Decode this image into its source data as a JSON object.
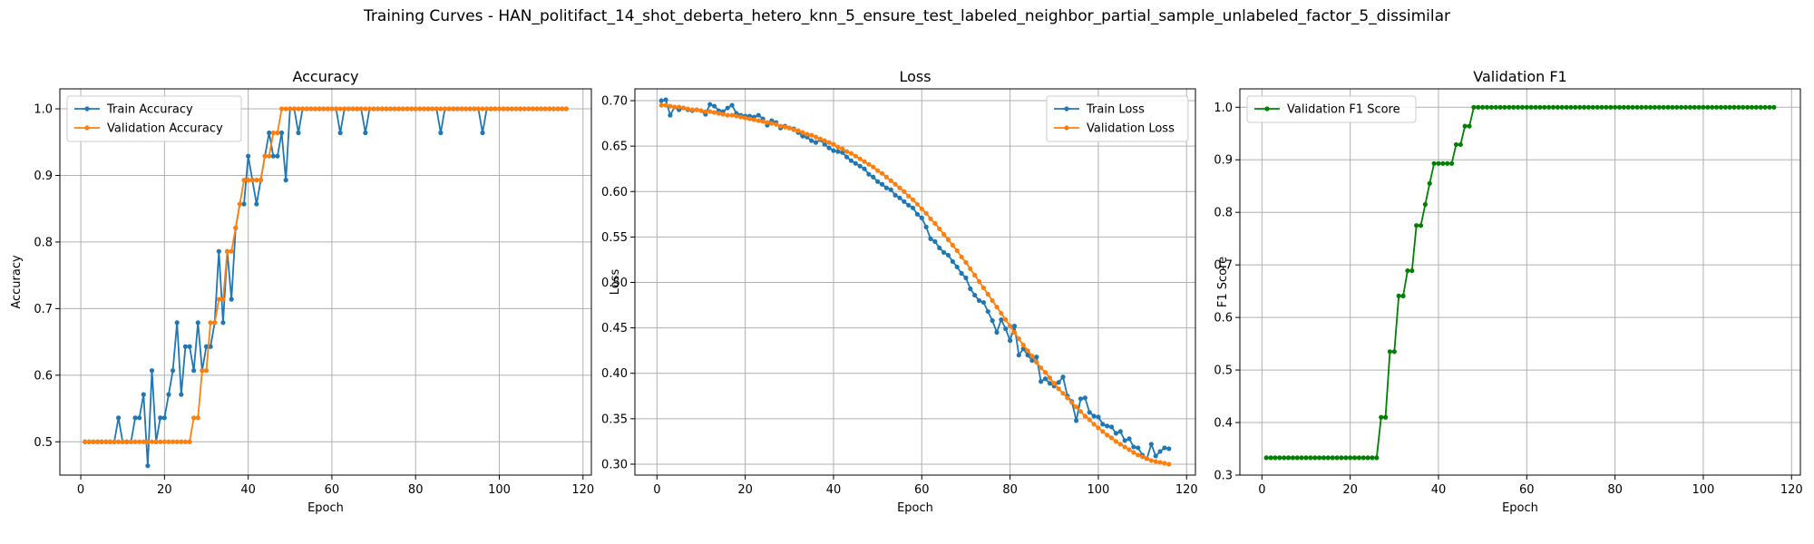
{
  "figure": {
    "suptitle": "Training Curves - HAN_politifact_14_shot_deberta_hetero_knn_5_ensure_test_labeled_neighbor_partial_sample_unlabeled_factor_5_dissimilar"
  },
  "colors": {
    "blue": "#1f77b4",
    "orange": "#ff7f0e",
    "green": "#008000",
    "grid": "#b0b0b0"
  },
  "chart_data": [
    {
      "type": "line",
      "title": "Accuracy",
      "xlabel": "Epoch",
      "ylabel": "Accuracy",
      "xlim": [
        -5,
        122
      ],
      "ylim": [
        0.45,
        1.03
      ],
      "xticks": [
        0,
        20,
        40,
        60,
        80,
        100,
        120
      ],
      "yticks": [
        0.5,
        0.6,
        0.7,
        0.8,
        0.9,
        1.0
      ],
      "ytick_labels": [
        "0.5",
        "0.6",
        "0.7",
        "0.8",
        "0.9",
        "1.0"
      ],
      "grid": true,
      "legend": "upper-left",
      "series": [
        {
          "name": "Train Accuracy",
          "color": "#1f77b4",
          "values": [
            0.5,
            0.5,
            0.5,
            0.5,
            0.5,
            0.5,
            0.5,
            0.5,
            0.536,
            0.5,
            0.5,
            0.5,
            0.536,
            0.536,
            0.571,
            0.464,
            0.607,
            0.5,
            0.536,
            0.536,
            0.571,
            0.607,
            0.679,
            0.571,
            0.643,
            0.643,
            0.607,
            0.679,
            0.607,
            0.643,
            0.643,
            0.679,
            0.786,
            0.679,
            0.786,
            0.714,
            0.821,
            0.857,
            0.857,
            0.929,
            0.893,
            0.857,
            0.893,
            0.929,
            0.964,
            0.929,
            0.929,
            0.964,
            0.893,
            1.0,
            1.0,
            0.964,
            1.0,
            1.0,
            1.0,
            1.0,
            1.0,
            1.0,
            1.0,
            1.0,
            1.0,
            0.964,
            1.0,
            1.0,
            1.0,
            1.0,
            1.0,
            0.964,
            1.0,
            1.0,
            1.0,
            1.0,
            1.0,
            1.0,
            1.0,
            1.0,
            1.0,
            1.0,
            1.0,
            1.0,
            1.0,
            1.0,
            1.0,
            1.0,
            1.0,
            0.964,
            1.0,
            1.0,
            1.0,
            1.0,
            1.0,
            1.0,
            1.0,
            1.0,
            1.0,
            0.964,
            1.0,
            1.0,
            1.0,
            1.0,
            1.0,
            1.0,
            1.0,
            1.0,
            1.0,
            1.0,
            1.0,
            1.0,
            1.0,
            1.0,
            1.0,
            1.0,
            1.0,
            1.0,
            1.0,
            1.0
          ]
        },
        {
          "name": "Validation Accuracy",
          "color": "#ff7f0e",
          "values": [
            0.5,
            0.5,
            0.5,
            0.5,
            0.5,
            0.5,
            0.5,
            0.5,
            0.5,
            0.5,
            0.5,
            0.5,
            0.5,
            0.5,
            0.5,
            0.5,
            0.5,
            0.5,
            0.5,
            0.5,
            0.5,
            0.5,
            0.5,
            0.5,
            0.5,
            0.5,
            0.536,
            0.536,
            0.607,
            0.607,
            0.679,
            0.679,
            0.714,
            0.714,
            0.786,
            0.786,
            0.821,
            0.857,
            0.893,
            0.893,
            0.893,
            0.893,
            0.893,
            0.929,
            0.929,
            0.964,
            0.964,
            1.0,
            1.0,
            1.0,
            1.0,
            1.0,
            1.0,
            1.0,
            1.0,
            1.0,
            1.0,
            1.0,
            1.0,
            1.0,
            1.0,
            1.0,
            1.0,
            1.0,
            1.0,
            1.0,
            1.0,
            1.0,
            1.0,
            1.0,
            1.0,
            1.0,
            1.0,
            1.0,
            1.0,
            1.0,
            1.0,
            1.0,
            1.0,
            1.0,
            1.0,
            1.0,
            1.0,
            1.0,
            1.0,
            1.0,
            1.0,
            1.0,
            1.0,
            1.0,
            1.0,
            1.0,
            1.0,
            1.0,
            1.0,
            1.0,
            1.0,
            1.0,
            1.0,
            1.0,
            1.0,
            1.0,
            1.0,
            1.0,
            1.0,
            1.0,
            1.0,
            1.0,
            1.0,
            1.0,
            1.0,
            1.0,
            1.0,
            1.0,
            1.0,
            1.0
          ]
        }
      ]
    },
    {
      "type": "line",
      "title": "Loss",
      "xlabel": "Epoch",
      "ylabel": "Loss",
      "xlim": [
        -5,
        122
      ],
      "ylim": [
        0.288,
        0.713
      ],
      "xticks": [
        0,
        20,
        40,
        60,
        80,
        100,
        120
      ],
      "yticks": [
        0.3,
        0.35,
        0.4,
        0.45,
        0.5,
        0.55,
        0.6,
        0.65,
        0.7
      ],
      "ytick_labels": [
        "0.30",
        "0.35",
        "0.40",
        "0.45",
        "0.50",
        "0.55",
        "0.60",
        "0.65",
        "0.70"
      ],
      "grid": true,
      "legend": "upper-right",
      "series": [
        {
          "name": "Train Loss",
          "color": "#1f77b4",
          "values": [
            0.7,
            0.701,
            0.684,
            0.693,
            0.69,
            0.692,
            0.69,
            0.689,
            0.69,
            0.689,
            0.685,
            0.696,
            0.694,
            0.689,
            0.688,
            0.692,
            0.695,
            0.686,
            0.684,
            0.683,
            0.683,
            0.682,
            0.684,
            0.68,
            0.673,
            0.678,
            0.676,
            0.67,
            0.672,
            0.67,
            0.669,
            0.665,
            0.661,
            0.66,
            0.656,
            0.654,
            0.657,
            0.652,
            0.648,
            0.645,
            0.644,
            0.643,
            0.638,
            0.634,
            0.631,
            0.628,
            0.625,
            0.619,
            0.616,
            0.611,
            0.608,
            0.604,
            0.602,
            0.596,
            0.593,
            0.589,
            0.585,
            0.582,
            0.575,
            0.571,
            0.561,
            0.548,
            0.545,
            0.538,
            0.533,
            0.53,
            0.523,
            0.517,
            0.51,
            0.505,
            0.493,
            0.486,
            0.48,
            0.478,
            0.468,
            0.458,
            0.445,
            0.459,
            0.449,
            0.436,
            0.452,
            0.42,
            0.427,
            0.42,
            0.414,
            0.418,
            0.391,
            0.394,
            0.389,
            0.386,
            0.39,
            0.396,
            0.375,
            0.369,
            0.348,
            0.372,
            0.373,
            0.357,
            0.353,
            0.352,
            0.344,
            0.342,
            0.341,
            0.334,
            0.336,
            0.326,
            0.328,
            0.319,
            0.318,
            0.31,
            0.306,
            0.322,
            0.309,
            0.314,
            0.318,
            0.317
          ]
        },
        {
          "name": "Validation Loss",
          "color": "#ff7f0e",
          "values": [
            0.695,
            0.695,
            0.694,
            0.693,
            0.693,
            0.692,
            0.691,
            0.69,
            0.69,
            0.689,
            0.688,
            0.688,
            0.687,
            0.686,
            0.685,
            0.684,
            0.684,
            0.683,
            0.682,
            0.681,
            0.68,
            0.679,
            0.678,
            0.677,
            0.676,
            0.675,
            0.674,
            0.672,
            0.671,
            0.67,
            0.668,
            0.667,
            0.665,
            0.663,
            0.662,
            0.66,
            0.658,
            0.656,
            0.654,
            0.652,
            0.649,
            0.647,
            0.644,
            0.642,
            0.639,
            0.636,
            0.633,
            0.63,
            0.627,
            0.623,
            0.62,
            0.616,
            0.612,
            0.608,
            0.604,
            0.6,
            0.595,
            0.591,
            0.586,
            0.581,
            0.576,
            0.57,
            0.565,
            0.559,
            0.553,
            0.547,
            0.541,
            0.535,
            0.528,
            0.522,
            0.515,
            0.508,
            0.501,
            0.494,
            0.487,
            0.48,
            0.473,
            0.466,
            0.459,
            0.452,
            0.445,
            0.438,
            0.431,
            0.425,
            0.419,
            0.412,
            0.406,
            0.401,
            0.395,
            0.389,
            0.383,
            0.378,
            0.373,
            0.368,
            0.363,
            0.358,
            0.353,
            0.349,
            0.344,
            0.34,
            0.336,
            0.332,
            0.329,
            0.325,
            0.322,
            0.319,
            0.316,
            0.313,
            0.31,
            0.308,
            0.306,
            0.304,
            0.303,
            0.302,
            0.301,
            0.3
          ]
        }
      ]
    },
    {
      "type": "line",
      "title": "Validation F1",
      "xlabel": "Epoch",
      "ylabel": "F1 Score",
      "xlim": [
        -5,
        122
      ],
      "ylim": [
        0.3,
        1.035
      ],
      "xticks": [
        0,
        20,
        40,
        60,
        80,
        100,
        120
      ],
      "yticks": [
        0.3,
        0.4,
        0.5,
        0.6,
        0.7,
        0.8,
        0.9,
        1.0
      ],
      "ytick_labels": [
        "0.3",
        "0.4",
        "0.5",
        "0.6",
        "0.7",
        "0.8",
        "0.9",
        "1.0"
      ],
      "grid": true,
      "legend": "upper-left",
      "series": [
        {
          "name": "Validation F1 Score",
          "color": "#008000",
          "values": [
            0.333,
            0.333,
            0.333,
            0.333,
            0.333,
            0.333,
            0.333,
            0.333,
            0.333,
            0.333,
            0.333,
            0.333,
            0.333,
            0.333,
            0.333,
            0.333,
            0.333,
            0.333,
            0.333,
            0.333,
            0.333,
            0.333,
            0.333,
            0.333,
            0.333,
            0.333,
            0.41,
            0.41,
            0.535,
            0.535,
            0.641,
            0.641,
            0.689,
            0.689,
            0.775,
            0.775,
            0.815,
            0.855,
            0.893,
            0.893,
            0.893,
            0.893,
            0.893,
            0.929,
            0.929,
            0.964,
            0.964,
            1.0,
            1.0,
            1.0,
            1.0,
            1.0,
            1.0,
            1.0,
            1.0,
            1.0,
            1.0,
            1.0,
            1.0,
            1.0,
            1.0,
            1.0,
            1.0,
            1.0,
            1.0,
            1.0,
            1.0,
            1.0,
            1.0,
            1.0,
            1.0,
            1.0,
            1.0,
            1.0,
            1.0,
            1.0,
            1.0,
            1.0,
            1.0,
            1.0,
            1.0,
            1.0,
            1.0,
            1.0,
            1.0,
            1.0,
            1.0,
            1.0,
            1.0,
            1.0,
            1.0,
            1.0,
            1.0,
            1.0,
            1.0,
            1.0,
            1.0,
            1.0,
            1.0,
            1.0,
            1.0,
            1.0,
            1.0,
            1.0,
            1.0,
            1.0,
            1.0,
            1.0,
            1.0,
            1.0,
            1.0,
            1.0,
            1.0,
            1.0,
            1.0,
            1.0
          ]
        }
      ]
    }
  ]
}
